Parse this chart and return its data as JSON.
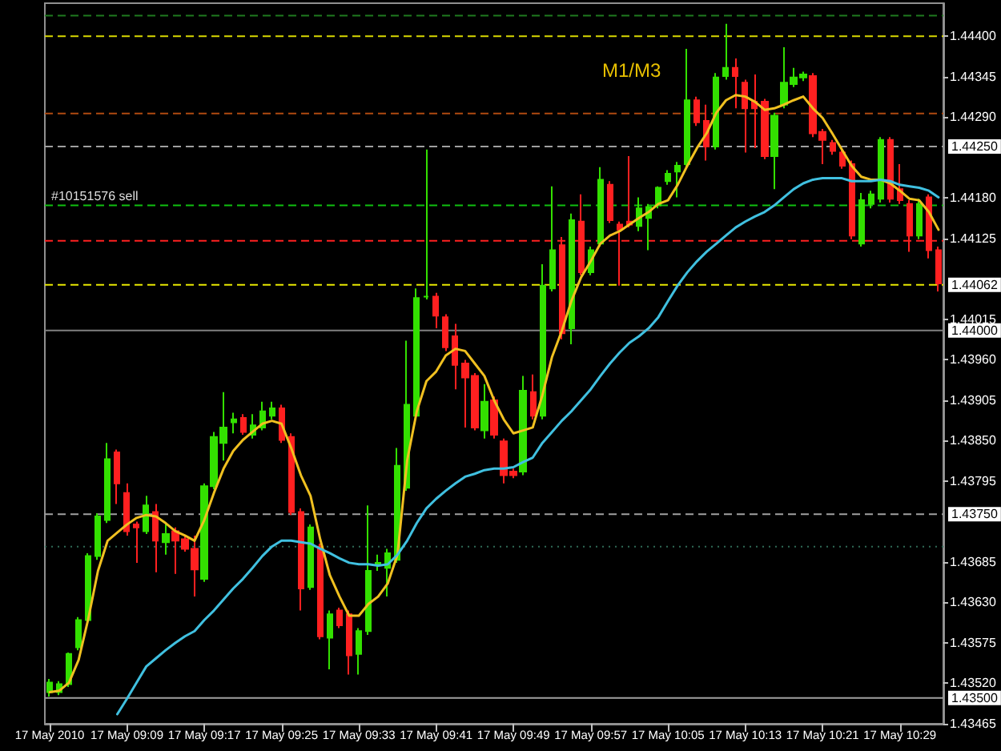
{
  "chart_data": {
    "type": "candlestick",
    "categories": [
      "17 May 2010",
      null,
      null,
      null,
      null,
      null,
      null,
      null,
      "17 May 09:09",
      null,
      null,
      null,
      null,
      null,
      null,
      null,
      "17 May 09:17",
      null,
      null,
      null,
      null,
      null,
      null,
      null,
      "17 May 09:25",
      null,
      null,
      null,
      null,
      null,
      null,
      null,
      "17 May 09:33",
      null,
      null,
      null,
      null,
      null,
      null,
      null,
      "17 May 09:41",
      null,
      null,
      null,
      null,
      null,
      null,
      null,
      "17 May 09:49",
      null,
      null,
      null,
      null,
      null,
      null,
      null,
      "17 May 09:57",
      null,
      null,
      null,
      null,
      null,
      null,
      null,
      "17 May 10:05",
      null,
      null,
      null,
      null,
      null,
      null,
      null,
      "17 May 10:13",
      null,
      null,
      null,
      null,
      null,
      null,
      null,
      "17 May 10:21",
      null,
      null,
      null,
      null,
      null,
      null,
      null,
      "17 May 10:29",
      null,
      null,
      null,
      null
    ],
    "ohlc": [
      [
        1.43508,
        1.43526,
        1.43502,
        1.43521
      ],
      [
        1.43508,
        1.43523,
        1.43504,
        1.43519
      ],
      [
        1.43519,
        1.43562,
        1.43515,
        1.4356
      ],
      [
        1.43569,
        1.4361,
        1.43565,
        1.43606
      ],
      [
        1.43606,
        1.43697,
        1.43601,
        1.43693
      ],
      [
        1.43693,
        1.43751,
        1.43688,
        1.43747
      ],
      [
        1.43742,
        1.43847,
        1.43738,
        1.43825
      ],
      [
        1.43834,
        1.43838,
        1.43764,
        1.43792
      ],
      [
        1.43779,
        1.43792,
        1.43721,
        1.43727
      ],
      [
        1.43736,
        1.4374,
        1.43684,
        1.43732
      ],
      [
        1.43727,
        1.43775,
        1.43723,
        1.43762
      ],
      [
        1.43753,
        1.43764,
        1.43671,
        1.43714
      ],
      [
        1.43712,
        1.43738,
        1.43695,
        1.43723
      ],
      [
        1.43727,
        1.43732,
        1.43669,
        1.43714
      ],
      [
        1.43716,
        1.43721,
        1.43699,
        1.43703
      ],
      [
        1.43703,
        1.43721,
        1.43638,
        1.43675
      ],
      [
        1.43662,
        1.43792,
        1.43658,
        1.43788
      ],
      [
        1.43788,
        1.43862,
        1.43784,
        1.43855
      ],
      [
        1.43847,
        1.43916,
        1.43823,
        1.43868
      ],
      [
        1.43875,
        1.43888,
        1.4386,
        1.43879
      ],
      [
        1.43881,
        1.43886,
        1.43858,
        1.43862
      ],
      [
        1.43858,
        1.43886,
        1.43853,
        1.43871
      ],
      [
        1.43868,
        1.43903,
        1.43864,
        1.4389
      ],
      [
        1.43884,
        1.43903,
        1.43879,
        1.43894
      ],
      [
        1.43894,
        1.43899,
        1.43847,
        1.43851
      ],
      [
        1.43855,
        1.4386,
        1.43749,
        1.43753
      ],
      [
        1.43753,
        1.43758,
        1.43619,
        1.43649
      ],
      [
        1.43651,
        1.43736,
        1.43647,
        1.43732
      ],
      [
        1.43706,
        1.4371,
        1.4358,
        1.43584
      ],
      [
        1.43582,
        1.43619,
        1.43539,
        1.43614
      ],
      [
        1.43619,
        1.43623,
        1.43595,
        1.43599
      ],
      [
        1.43614,
        1.43619,
        1.43532,
        1.43558
      ],
      [
        1.4356,
        1.43595,
        1.43532,
        1.43591
      ],
      [
        1.43591,
        1.43762,
        1.43586,
        1.43673
      ],
      [
        1.43682,
        1.43695,
        1.43673,
        1.43684
      ],
      [
        1.43677,
        1.43703,
        1.43638,
        1.43697
      ],
      [
        1.43688,
        1.4384,
        1.43684,
        1.43816
      ],
      [
        1.43786,
        1.43986,
        1.43782,
        1.43899
      ],
      [
        1.43884,
        1.44057,
        1.43879,
        1.44044
      ],
      [
        1.44046,
        1.44246,
        1.44042,
        1.44046
      ],
      [
        1.44046,
        1.44051,
        1.44003,
        1.4402
      ],
      [
        1.44018,
        1.44022,
        1.43972,
        1.43977
      ],
      [
        1.43992,
        1.44009,
        1.4392,
        1.43953
      ],
      [
        1.43955,
        1.4396,
        1.43868,
        1.43936
      ],
      [
        1.43938,
        1.43942,
        1.43864,
        1.43868
      ],
      [
        1.43864,
        1.43927,
        1.43853,
        1.43903
      ],
      [
        1.43905,
        1.4391,
        1.43853,
        1.43858
      ],
      [
        1.43849,
        1.43853,
        1.43792,
        1.43803
      ],
      [
        1.43808,
        1.43812,
        1.43799,
        1.43803
      ],
      [
        1.43808,
        1.43938,
        1.43803,
        1.43918
      ],
      [
        1.43916,
        1.4394,
        1.43879,
        1.43884
      ],
      [
        1.43884,
        1.4409,
        1.43879,
        1.44061
      ],
      [
        1.44057,
        1.44196,
        1.44053,
        1.44109
      ],
      [
        1.44116,
        1.44127,
        1.43988,
        1.43996
      ],
      [
        1.44003,
        1.44159,
        1.43981,
        1.4415
      ],
      [
        1.44148,
        1.44185,
        1.44075,
        1.44079
      ],
      [
        1.44079,
        1.44114,
        1.44075,
        1.44109
      ],
      [
        1.44118,
        1.44222,
        1.44114,
        1.44205
      ],
      [
        1.44198,
        1.44203,
        1.44146,
        1.4415
      ],
      [
        1.44144,
        1.44148,
        1.44061,
        1.44137
      ],
      [
        1.44148,
        1.44237,
        1.4414,
        1.44144
      ],
      [
        1.44142,
        1.44181,
        1.44135,
        1.44166
      ],
      [
        1.44153,
        1.44172,
        1.44109,
        1.44168
      ],
      [
        1.4417,
        1.44196,
        1.44166,
        1.44194
      ],
      [
        1.44203,
        1.44218,
        1.44198,
        1.44213
      ],
      [
        1.44216,
        1.44229,
        1.44181,
        1.44224
      ],
      [
        1.44226,
        1.44383,
        1.44222,
        1.44313
      ],
      [
        1.44313,
        1.44318,
        1.44278,
        1.44283
      ],
      [
        1.44285,
        1.44307,
        1.44231,
        1.4425
      ],
      [
        1.4425,
        1.4435,
        1.44246,
        1.44344
      ],
      [
        1.44346,
        1.44417,
        1.44341,
        1.44357
      ],
      [
        1.44357,
        1.4437,
        1.44302,
        1.44346
      ],
      [
        1.44337,
        1.44341,
        1.44242,
        1.44302
      ],
      [
        1.44311,
        1.44348,
        1.44248,
        1.44302
      ],
      [
        1.44311,
        1.44315,
        1.44233,
        1.44237
      ],
      [
        1.44237,
        1.44296,
        1.44192,
        1.44292
      ],
      [
        1.44307,
        1.44385,
        1.44302,
        1.44337
      ],
      [
        1.44335,
        1.44357,
        1.44331,
        1.44344
      ],
      [
        1.44344,
        1.44352,
        1.44339,
        1.44348
      ],
      [
        1.44346,
        1.4435,
        1.44263,
        1.44268
      ],
      [
        1.4427,
        1.44274,
        1.44226,
        1.44259
      ],
      [
        1.44255,
        1.44259,
        1.44239,
        1.44244
      ],
      [
        1.44242,
        1.44246,
        1.4422,
        1.44224
      ],
      [
        1.44226,
        1.44231,
        1.44124,
        1.44129
      ],
      [
        1.44118,
        1.44187,
        1.44114,
        1.44177
      ],
      [
        1.44172,
        1.4419,
        1.44166,
        1.44185
      ],
      [
        1.44179,
        1.44263,
        1.44174,
        1.44259
      ],
      [
        1.44259,
        1.44263,
        1.44174,
        1.44179
      ],
      [
        1.44192,
        1.44226,
        1.44172,
        1.44177
      ],
      [
        1.44172,
        1.44177,
        1.44107,
        1.44129
      ],
      [
        1.44129,
        1.44179,
        1.44124,
        1.44172
      ],
      [
        1.44181,
        1.44185,
        1.44098,
        1.44109
      ],
      [
        1.44109,
        1.44114,
        1.44053,
        1.44064
      ]
    ],
    "colors": [
      "#33e000",
      "#33e000",
      "#33e000",
      "#33e000",
      "#33e000",
      "#33e000",
      "#33e000",
      "#ff2020",
      "#ff2020",
      "#ff2020",
      "#33e000",
      "#ff2020",
      "#33e000",
      "#ff2020",
      "#ff2020",
      "#ff2020",
      "#33e000",
      "#33e000",
      "#33e000",
      "#33e000",
      "#ff2020",
      "#33e000",
      "#33e000",
      "#33e000",
      "#ff2020",
      "#ff2020",
      "#ff2020",
      "#33e000",
      "#ff2020",
      "#33e000",
      "#ff2020",
      "#ff2020",
      "#33e000",
      "#33e000",
      "#33e000",
      "#33e000",
      "#33e000",
      "#33e000",
      "#33e000",
      "#33e000",
      "#ff2020",
      "#ff2020",
      "#ff2020",
      "#ff2020",
      "#ff2020",
      "#33e000",
      "#ff2020",
      "#ff2020",
      "#ff2020",
      "#33e000",
      "#ff2020",
      "#33e000",
      "#33e000",
      "#ff2020",
      "#33e000",
      "#ff2020",
      "#33e000",
      "#33e000",
      "#ff2020",
      "#ff2020",
      "#ff2020",
      "#33e000",
      "#33e000",
      "#33e000",
      "#33e000",
      "#33e000",
      "#33e000",
      "#ff2020",
      "#ff2020",
      "#33e000",
      "#33e000",
      "#ff2020",
      "#ff2020",
      "#ff2020",
      "#ff2020",
      "#33e000",
      "#33e000",
      "#33e000",
      "#33e000",
      "#ff2020",
      "#ff2020",
      "#ff2020",
      "#ff2020",
      "#ff2020",
      "#33e000",
      "#33e000",
      "#33e000",
      "#ff2020",
      "#ff2020",
      "#ff2020",
      "#33e000",
      "#ff2020",
      "#ff2020"
    ],
    "series": [
      {
        "type": "line",
        "color": "#f0c020",
        "values": [
          1.43508,
          1.4351,
          1.43521,
          1.43552,
          1.43608,
          1.43673,
          1.43714,
          1.43725,
          1.43736,
          1.43745,
          1.43749,
          1.43747,
          1.43738,
          1.43727,
          1.43721,
          1.43714,
          1.43742,
          1.43779,
          1.43812,
          1.43836,
          1.43851,
          1.43862,
          1.43873,
          1.43877,
          1.43873,
          1.4384,
          1.43803,
          1.43775,
          1.43716,
          1.43667,
          1.43638,
          1.43612,
          1.43612,
          1.43628,
          1.43638,
          1.43656,
          1.43695,
          1.43823,
          1.4389,
          1.43931,
          1.43944,
          1.43966,
          1.43975,
          1.43972,
          1.43955,
          1.43938,
          1.43905,
          1.43879,
          1.4386,
          1.43864,
          1.43868,
          1.43912,
          1.43964,
          1.43999,
          1.4404,
          1.44072,
          1.44094,
          1.44118,
          1.44129,
          1.44135,
          1.44144,
          1.44153,
          1.44161,
          1.44172,
          1.44177,
          1.44198,
          1.44224,
          1.44248,
          1.44268,
          1.44296,
          1.44313,
          1.4432,
          1.44318,
          1.44311,
          1.443,
          1.44302,
          1.44307,
          1.44313,
          1.44318,
          1.44302,
          1.44289,
          1.44268,
          1.44246,
          1.44224,
          1.44209,
          1.44205,
          1.44205,
          1.442,
          1.4419,
          1.44179,
          1.44177,
          1.44161,
          1.44137
        ]
      },
      {
        "type": "line",
        "color": "#40c0e0",
        "values": [
          null,
          null,
          null,
          null,
          null,
          null,
          null,
          1.43478,
          1.43499,
          1.43521,
          1.43543,
          1.43554,
          1.43565,
          1.43575,
          1.43584,
          1.43591,
          1.43606,
          1.43619,
          1.43634,
          1.43649,
          1.43662,
          1.43677,
          1.43693,
          1.43706,
          1.43714,
          1.43714,
          1.43712,
          1.4371,
          1.43703,
          1.43697,
          1.4369,
          1.43684,
          1.43682,
          1.43682,
          1.4368,
          1.43682,
          1.43695,
          1.43714,
          1.43738,
          1.43758,
          1.43771,
          1.43782,
          1.43792,
          1.43801,
          1.43805,
          1.4381,
          1.43812,
          1.43812,
          1.43814,
          1.43821,
          1.43827,
          1.43847,
          1.43862,
          1.43877,
          1.4389,
          1.43905,
          1.4392,
          1.43938,
          1.43955,
          1.4397,
          1.43983,
          1.43992,
          1.44003,
          1.44018,
          1.4404,
          1.44061,
          1.44079,
          1.44094,
          1.44107,
          1.44118,
          1.44129,
          1.4414,
          1.44148,
          1.44155,
          1.44161,
          1.4417,
          1.44181,
          1.44192,
          1.442,
          1.44205,
          1.44207,
          1.44207,
          1.44207,
          1.44203,
          1.44203,
          1.44203,
          1.44205,
          1.44203,
          1.44198,
          1.44196,
          1.44194,
          1.4419,
          1.44181
        ]
      }
    ],
    "ylim": [
      1.43465,
      1.44445
    ],
    "yticks": [
      {
        "value": 1.444,
        "label": "1.44400"
      },
      {
        "value": 1.44345,
        "label": "1.44345"
      },
      {
        "value": 1.4429,
        "label": "1.44290"
      },
      {
        "value": 1.4418,
        "label": "1.44180"
      },
      {
        "value": 1.44125,
        "label": "1.44125"
      },
      {
        "value": 1.44015,
        "label": "1.44015"
      },
      {
        "value": 1.4396,
        "label": "1.43960"
      },
      {
        "value": 1.43905,
        "label": "1.43905"
      },
      {
        "value": 1.4385,
        "label": "1.43850"
      },
      {
        "value": 1.43795,
        "label": "1.43795"
      },
      {
        "value": 1.43685,
        "label": "1.43685"
      },
      {
        "value": 1.4363,
        "label": "1.43630"
      },
      {
        "value": 1.43575,
        "label": "1.43575"
      },
      {
        "value": 1.4352,
        "label": "1.43520"
      },
      {
        "value": 1.43465,
        "label": "1.43465"
      }
    ],
    "ref_lines": [
      {
        "axis": "y",
        "value": 1.44428,
        "color": "#1f7a1f",
        "line_style": "dashed"
      },
      {
        "axis": "y",
        "value": 1.444,
        "color": "#d8d800",
        "line_style": "dashed"
      },
      {
        "axis": "y",
        "value": 1.44295,
        "color": "#b04a10",
        "line_style": "dashed"
      },
      {
        "axis": "y",
        "value": 1.4425,
        "label": "1.44250",
        "color": "#a0a0a0",
        "line_style": "dashed"
      },
      {
        "axis": "y",
        "value": 1.4417,
        "label": "#10151576 sell",
        "color": "#10c010",
        "line_style": "dashed"
      },
      {
        "axis": "y",
        "value": 1.44122,
        "color": "#ff2020",
        "line_style": "dashed"
      },
      {
        "axis": "y",
        "value": 1.44062,
        "label": "1.44062",
        "color": "#e8e800",
        "line_style": "dashed"
      },
      {
        "axis": "y",
        "value": 1.44,
        "label": "1.44000",
        "color": "#808080",
        "line_style": "solid"
      },
      {
        "axis": "y",
        "value": 1.4375,
        "label": "1.43750",
        "color": "#a0a0a0",
        "line_style": "dashed"
      },
      {
        "axis": "y",
        "value": 1.43706,
        "color": "#2f6a55",
        "line_style": "dotted"
      },
      {
        "axis": "y",
        "value": 1.435,
        "label": "1.43500",
        "color": "#a0a0a0",
        "line_style": "solid"
      }
    ],
    "annotations": [
      "M1/M3"
    ],
    "marker": "none",
    "grid": false
  }
}
